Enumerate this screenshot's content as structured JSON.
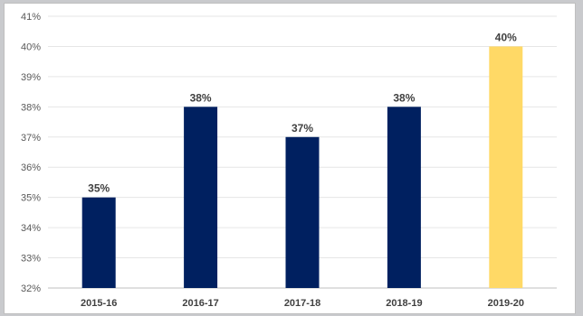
{
  "chart_data": {
    "type": "bar",
    "title": "",
    "xlabel": "",
    "ylabel": "",
    "categories": [
      "2015-16",
      "2016-17",
      "2017-18",
      "2018-19",
      "2019-20"
    ],
    "values": [
      35,
      38,
      37,
      38,
      40
    ],
    "data_labels": [
      "35%",
      "38%",
      "37%",
      "38%",
      "40%"
    ],
    "ylim": [
      32,
      41
    ],
    "yticks": [
      32,
      33,
      34,
      35,
      36,
      37,
      38,
      39,
      40,
      41
    ],
    "ytick_labels": [
      "32%",
      "33%",
      "34%",
      "35%",
      "36%",
      "37%",
      "38%",
      "39%",
      "40%",
      "41%"
    ],
    "grid": true,
    "legend": "none",
    "colors": {
      "default_bar": "#002060",
      "highlight_bar": "#ffd966",
      "highlight_index": 4
    }
  }
}
